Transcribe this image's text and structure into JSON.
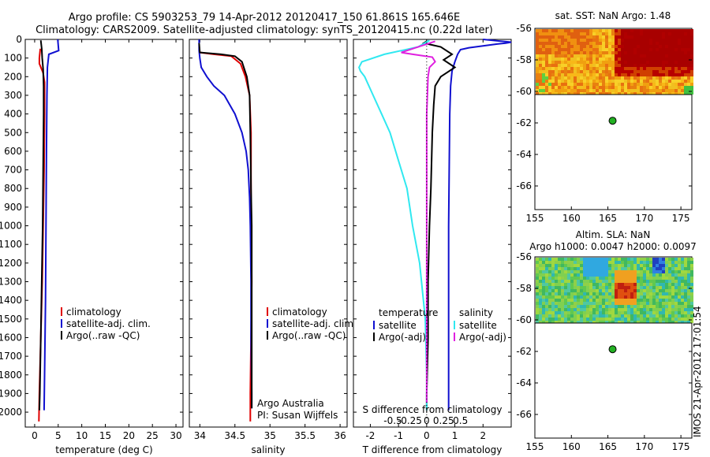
{
  "header": {
    "line1": "Argo profile: CS 5903253_79 14-Apr-2012 20120417_150 61.861S 165.646E",
    "line2": "Climatology: CARS2009. Satellite-adjusted climatology: synTS_20120415.nc (0.22d later)"
  },
  "watermark": "IMOS 21-Apr-2012 17:01:54",
  "colors": {
    "climatology": "#e00000",
    "satellite": "#1010d0",
    "argo": "#000000",
    "sal_satellite": "#30e8f0",
    "sal_argo": "#e020e0",
    "marker": "#22b022"
  },
  "chart_data": [
    {
      "type": "line",
      "id": "temperature",
      "xlabel": "temperature (deg C)",
      "xlim": [
        -2,
        31.5
      ],
      "ylim": [
        0,
        2080
      ],
      "xticks": [
        0,
        5,
        10,
        15,
        20,
        25,
        30
      ],
      "yticks": [
        0,
        100,
        200,
        300,
        400,
        500,
        600,
        700,
        800,
        900,
        1000,
        1100,
        1200,
        1300,
        1400,
        1500,
        1600,
        1700,
        1800,
        1900,
        2000
      ],
      "legend": [
        "climatology",
        "satellite-adj. clim.",
        "Argo(..raw -QC)"
      ],
      "series": [
        {
          "name": "climatology",
          "color": "#e00000",
          "points": [
            [
              1.2,
              50
            ],
            [
              1.0,
              100
            ],
            [
              1.0,
              130
            ],
            [
              1.8,
              180
            ],
            [
              2.1,
              230
            ],
            [
              2.1,
              400
            ],
            [
              2.0,
              700
            ],
            [
              1.8,
              1000
            ],
            [
              1.6,
              1300
            ],
            [
              1.3,
              1600
            ],
            [
              1.0,
              1900
            ],
            [
              0.9,
              2050
            ]
          ]
        },
        {
          "name": "satellite-adj. clim.",
          "color": "#1010d0",
          "points": [
            [
              4.9,
              0
            ],
            [
              5.1,
              60
            ],
            [
              3.0,
              80
            ],
            [
              2.7,
              150
            ],
            [
              2.6,
              300
            ],
            [
              2.5,
              600
            ],
            [
              2.4,
              1000
            ],
            [
              2.3,
              1400
            ],
            [
              2.1,
              1800
            ],
            [
              2.0,
              1990
            ]
          ]
        },
        {
          "name": "Argo(..raw -QC)",
          "color": "#000000",
          "points": [
            [
              1.3,
              5
            ],
            [
              1.5,
              50
            ],
            [
              1.6,
              100
            ],
            [
              1.8,
              160
            ],
            [
              1.9,
              250
            ],
            [
              1.9,
              400
            ],
            [
              1.8,
              700
            ],
            [
              1.7,
              1000
            ],
            [
              1.5,
              1300
            ],
            [
              1.3,
              1600
            ],
            [
              1.1,
              1900
            ],
            [
              1.0,
              1990
            ]
          ]
        }
      ]
    },
    {
      "type": "line",
      "id": "salinity",
      "xlabel": "salinity",
      "xlim": [
        33.85,
        36.1
      ],
      "ylim": [
        0,
        2080
      ],
      "xticks": [
        34,
        34.5,
        35,
        35.5,
        36
      ],
      "xticklabels": [
        "34",
        "34.5",
        "35",
        "35.5",
        "36"
      ],
      "legend": [
        "climatology",
        "satellite-adj. clim.",
        "Argo(..raw -QC)"
      ],
      "annotations": [
        "Argo Australia",
        "PI: Susan Wijffels"
      ],
      "series": [
        {
          "name": "climatology",
          "color": "#e00000",
          "points": [
            [
              33.99,
              50
            ],
            [
              34.0,
              70
            ],
            [
              34.2,
              80
            ],
            [
              34.45,
              90
            ],
            [
              34.58,
              130
            ],
            [
              34.65,
              200
            ],
            [
              34.71,
              300
            ],
            [
              34.73,
              500
            ],
            [
              34.73,
              900
            ],
            [
              34.74,
              1300
            ],
            [
              34.73,
              1600
            ],
            [
              34.72,
              1900
            ],
            [
              34.72,
              2050
            ]
          ]
        },
        {
          "name": "satellite-adj. clim.",
          "color": "#1010d0",
          "points": [
            [
              33.99,
              0
            ],
            [
              33.99,
              60
            ],
            [
              34.0,
              100
            ],
            [
              34.02,
              150
            ],
            [
              34.1,
              200
            ],
            [
              34.2,
              250
            ],
            [
              34.35,
              300
            ],
            [
              34.5,
              400
            ],
            [
              34.6,
              500
            ],
            [
              34.66,
              600
            ],
            [
              34.69,
              700
            ],
            [
              34.71,
              850
            ],
            [
              34.72,
              1000
            ],
            [
              34.73,
              1300
            ],
            [
              34.73,
              1600
            ],
            [
              34.74,
              1900
            ],
            [
              34.74,
              1980
            ]
          ]
        },
        {
          "name": "Argo(..raw -QC)",
          "color": "#000000",
          "points": [
            [
              33.99,
              20
            ],
            [
              34.0,
              70
            ],
            [
              34.3,
              80
            ],
            [
              34.5,
              90
            ],
            [
              34.6,
              120
            ],
            [
              34.67,
              200
            ],
            [
              34.71,
              300
            ],
            [
              34.72,
              500
            ],
            [
              34.73,
              800
            ],
            [
              34.74,
              1000
            ],
            [
              34.74,
              1300
            ],
            [
              34.74,
              1600
            ],
            [
              34.74,
              1900
            ],
            [
              34.74,
              1980
            ]
          ]
        }
      ]
    },
    {
      "type": "line",
      "id": "difference",
      "xlabel": "T difference from climatology",
      "xlabel_top": "S difference from climatology",
      "xlim": [
        -2.6,
        3.0
      ],
      "ylim": [
        0,
        2080
      ],
      "xticks": [
        -2,
        -1,
        0,
        1,
        2
      ],
      "s_xticks": [
        -0.5,
        -0.25,
        0,
        0.25,
        0.5
      ],
      "s_xticklabels": [
        "-0.5",
        "-0.25",
        "0",
        "0.25",
        "0.5"
      ],
      "legend": [
        {
          "heading": "temperature",
          "items": [
            "satellite",
            "Argo(-adj)"
          ]
        },
        {
          "heading": "salinity",
          "items": [
            "satellite",
            "Argo(-adj)"
          ]
        }
      ],
      "series": [
        {
          "name": "temperature satellite",
          "color": "#1010d0",
          "points": [
            [
              2.0,
              0
            ],
            [
              3.0,
              15
            ],
            [
              2.8,
              20
            ],
            [
              2.5,
              25
            ],
            [
              2.0,
              35
            ],
            [
              1.5,
              45
            ],
            [
              1.2,
              55
            ],
            [
              1.1,
              80
            ],
            [
              1.0,
              120
            ],
            [
              0.9,
              170
            ],
            [
              0.85,
              250
            ],
            [
              0.82,
              400
            ],
            [
              0.8,
              700
            ],
            [
              0.78,
              1000
            ],
            [
              0.78,
              1300
            ],
            [
              0.78,
              1600
            ],
            [
              0.78,
              1990
            ]
          ]
        },
        {
          "name": "temperature Argo(-adj)",
          "color": "#000000",
          "points": [
            [
              0.0,
              10
            ],
            [
              -0.1,
              20
            ],
            [
              0.2,
              30
            ],
            [
              0.5,
              40
            ],
            [
              0.9,
              80
            ],
            [
              0.6,
              110
            ],
            [
              1.0,
              150
            ],
            [
              0.5,
              200
            ],
            [
              0.3,
              250
            ],
            [
              0.25,
              350
            ],
            [
              0.2,
              500
            ],
            [
              0.15,
              800
            ],
            [
              0.1,
              1000
            ],
            [
              0.05,
              1300
            ],
            [
              0.05,
              1600
            ],
            [
              0.0,
              1900
            ],
            [
              0.0,
              1990
            ]
          ]
        },
        {
          "name": "salinity satellite",
          "color": "#30e8f0",
          "points": [
            [
              0.1,
              5
            ],
            [
              -0.3,
              40
            ],
            [
              -1.5,
              80
            ],
            [
              -2.3,
              120
            ],
            [
              -2.4,
              150
            ],
            [
              -2.35,
              170
            ],
            [
              -2.2,
              200
            ],
            [
              -1.9,
              300
            ],
            [
              -1.6,
              400
            ],
            [
              -1.3,
              500
            ],
            [
              -1.0,
              650
            ],
            [
              -0.7,
              800
            ],
            [
              -0.5,
              1000
            ],
            [
              -0.25,
              1200
            ],
            [
              -0.05,
              1500
            ],
            [
              0.0,
              1800
            ],
            [
              0.0,
              1990
            ]
          ]
        },
        {
          "name": "salinity Argo(-adj)",
          "color": "#e020e0",
          "points": [
            [
              0.3,
              10
            ],
            [
              -0.9,
              70
            ],
            [
              -0.5,
              80
            ],
            [
              0.2,
              95
            ],
            [
              0.3,
              120
            ],
            [
              0.1,
              150
            ],
            [
              0.05,
              200
            ],
            [
              0.0,
              400
            ],
            [
              0.0,
              800
            ],
            [
              0.0,
              1200
            ],
            [
              0.0,
              1600
            ],
            [
              0.0,
              1950
            ]
          ]
        }
      ]
    },
    {
      "type": "heatmap",
      "id": "sst_map",
      "title": "sat. SST: NaN Argo: 1.48",
      "xlim": [
        155,
        176.5
      ],
      "ylim": [
        -67.5,
        -56
      ],
      "xticks": [
        155,
        160,
        165,
        170,
        175
      ],
      "yticks": [
        -56,
        -58,
        -60,
        -62,
        -64,
        -66
      ],
      "data_ymin": -60.2,
      "marker": [
        165.646,
        -61.861
      ]
    },
    {
      "type": "heatmap",
      "id": "sla_map",
      "title": "Altim. SLA: NaN",
      "subtitle": "Argo h1000: 0.0047 h2000: 0.0097",
      "xlim": [
        155,
        176.5
      ],
      "ylim": [
        -67.5,
        -56
      ],
      "xticks": [
        155,
        160,
        165,
        170,
        175
      ],
      "yticks": [
        -56,
        -58,
        -60,
        -62,
        -64,
        -66
      ],
      "data_ymin": -60.2,
      "marker": [
        165.646,
        -61.861
      ]
    }
  ]
}
